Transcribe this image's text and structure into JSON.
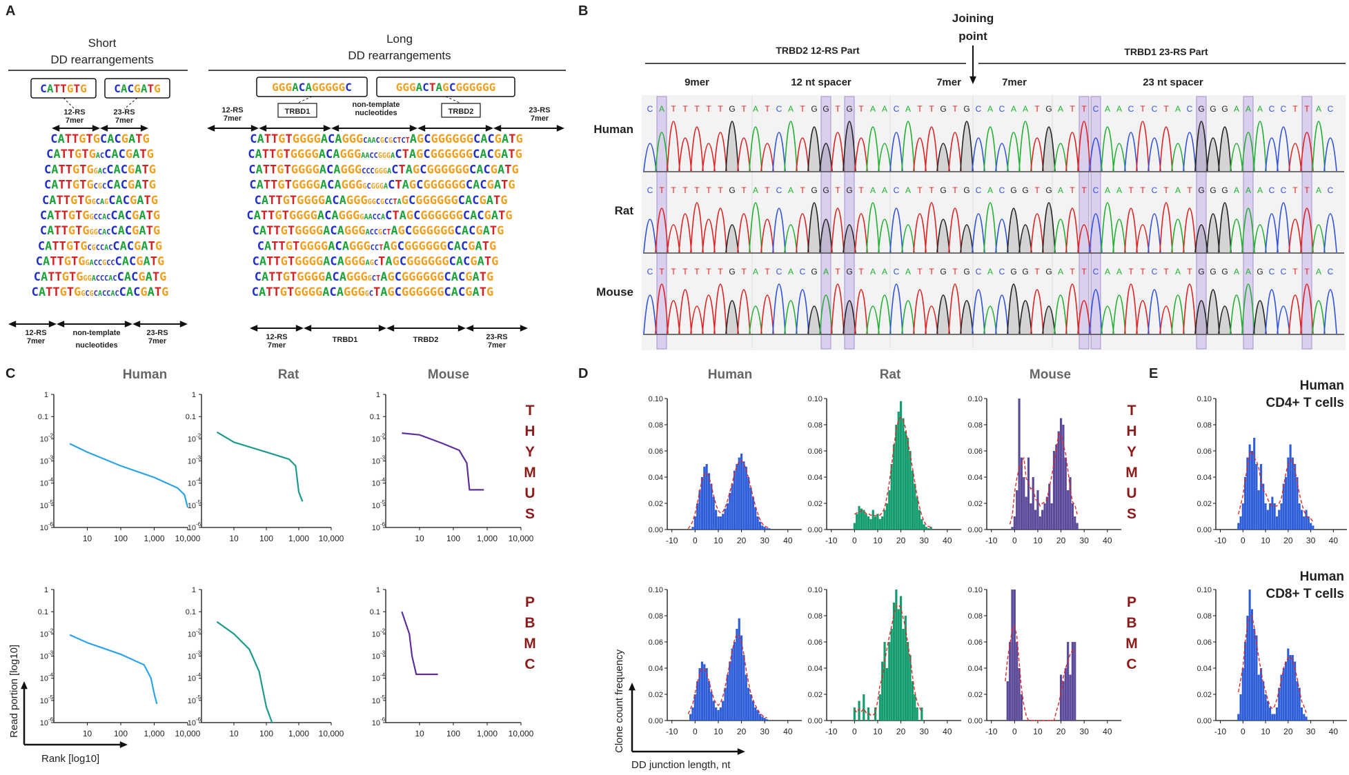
{
  "panels": {
    "A": "A",
    "B": "B",
    "C": "C",
    "D": "D",
    "E": "E"
  },
  "panelA": {
    "short_title": [
      "Short",
      "DD rearrangements"
    ],
    "long_title": [
      "Long",
      "DD rearrangements"
    ],
    "short_boxes": [
      "CATTGTG",
      "CACGATG"
    ],
    "long_boxes": [
      "GGGACAGGGGGC",
      "GGGACTAGCGGGGGG"
    ],
    "short_top_labels": [
      [
        "12-RS",
        "7mer"
      ],
      [
        "23-RS",
        "7mer"
      ]
    ],
    "long_top_labels": [
      [
        "12-RS",
        "7mer"
      ],
      "TRBD1",
      [
        "non-template",
        "nucleotides"
      ],
      "TRBD2",
      [
        "23-RS",
        "7mer"
      ]
    ],
    "short_bottom_labels": [
      [
        "12-RS",
        "7mer"
      ],
      [
        "non-template",
        "nucleotides"
      ],
      [
        "23-RS",
        "7mer"
      ]
    ],
    "long_bottom_labels": [
      [
        "12-RS",
        "7mer"
      ],
      "TRBD1",
      "TRBD2",
      [
        "23-RS",
        "7mer"
      ]
    ],
    "short_seqs": [
      [
        "CATTGTG",
        "",
        "CACGATG"
      ],
      [
        "CATTGTG",
        "AC",
        "CACGATG"
      ],
      [
        "CATTGTG",
        "GAC",
        "CACGATG"
      ],
      [
        "CATTGTG",
        "CGC",
        "CACGATG"
      ],
      [
        "CATTGTG",
        "GCAG",
        "CACGATG"
      ],
      [
        "CATTGTG",
        "GCCAC",
        "CACGATG"
      ],
      [
        "CATTGTG",
        "GGCAC",
        "CACGATG"
      ],
      [
        "CATTGTG",
        "CGCCAC",
        "CACGATG"
      ],
      [
        "CATTGTG",
        "GACCGCC",
        "CACGATG"
      ],
      [
        "CATTGTG",
        "GGACCCAC",
        "CACGATG"
      ],
      [
        "CATTGTG",
        "GCGCACCAC",
        "CACGATG"
      ]
    ],
    "long_seqs": [
      [
        "CATTGTGGGGACAGGG",
        "CAACGCGCTCT",
        "AGCGGGGGGCACGATG"
      ],
      [
        "CATTGTGGGGACAGGG",
        "AACCGGGA",
        "CTAGCGGGGGGCACGATG"
      ],
      [
        "CATTGTGGGGACAGGG",
        "CCCGGGA",
        "CTAGCGGGGGGCACGATG"
      ],
      [
        "CATTGTGGGGACAGGG",
        "GCGGGA",
        "CTAGCGGGGGGCACGATG"
      ],
      [
        "CATTGTGGGGACAGGG",
        "GGCGCCTA",
        "GCGGGGGGCACGATG"
      ],
      [
        "CATTGTGGGGACAGGG",
        "GAACCA",
        "CTAGCGGGGGGCACGATG"
      ],
      [
        "CATTGTGGGGACAGGG",
        "ACCGCT",
        "AGCGGGGGGCACGATG"
      ],
      [
        "CATTGTGGGGACAGGG",
        "CCT",
        "AGCGGGGGGCACGATG"
      ],
      [
        "CATTGTGGGGACAGGG",
        "AGC",
        "TAGCGGGGGGCACGATG"
      ],
      [
        "CATTGTGGGGACAGGG",
        "GCT",
        "AGCGGGGGGCACGATG"
      ],
      [
        "CATTGTGGGGACAGGG",
        "GC",
        "TAGCGGGGGGCACGATG"
      ]
    ]
  },
  "panelB": {
    "joining": [
      "Joining",
      "point"
    ],
    "left_header": "TRBD2 12-RS  Part",
    "right_header": "TRBD1 23-RS  Part",
    "segments": [
      "9mer",
      "12 nt spacer",
      "7mer",
      "7mer",
      "23 nt spacer"
    ],
    "rows": [
      {
        "label": "Human",
        "seq": "CATTTTTGTATCATGGTGTAACATTGTGCACAATGATTCAACTCTACGGGAAACCTTAC"
      },
      {
        "label": "Rat",
        "seq": "CTTTTTTGTATCATGGTGTAACATTGTGCACGGTGATTCAATTCTATGGGAAACCTTAC"
      },
      {
        "label": "Mouse",
        "seq": "CTTTTTTGTATCACGATGTAACATTGTGCACGGTGATTCAATTCTATGGGAAGCCTTAC"
      }
    ]
  },
  "panelC": {
    "species": [
      "Human",
      "Rat",
      "Mouse"
    ],
    "thymus_letters": [
      "T",
      "H",
      "Y",
      "M",
      "U",
      "S"
    ],
    "pbmc_letters": [
      "P",
      "B",
      "M",
      "C"
    ],
    "y_ticks": [
      "1",
      "0.1",
      "10-2",
      "10-3",
      "10-4",
      "10-5",
      "10-6"
    ],
    "x_ticks": [
      "10",
      "100",
      "1,000",
      "10,000"
    ],
    "ylabel": "Read portion [log10]",
    "xlabel": "Rank [log10]",
    "colors": {
      "Human": "#2aa3e8",
      "Rat": "#1a9a8c",
      "Mouse": "#5e2d9e"
    },
    "chart_data": [
      {
        "type": "line",
        "species": "Human",
        "tissue": "THYMUS",
        "x": [
          3,
          10,
          100,
          1000,
          5000,
          8000,
          10000
        ],
        "y": [
          0.006,
          0.0025,
          0.0006,
          0.00018,
          6e-05,
          3e-05,
          8e-06
        ]
      },
      {
        "type": "line",
        "species": "Rat",
        "tissue": "THYMUS",
        "x": [
          3,
          10,
          100,
          500,
          800,
          1000,
          1300
        ],
        "y": [
          0.02,
          0.007,
          0.0025,
          0.0012,
          0.0006,
          4e-05,
          1.5e-05
        ]
      },
      {
        "type": "line",
        "species": "Mouse",
        "tissue": "THYMUS",
        "x": [
          3,
          10,
          50,
          150,
          250,
          300,
          800
        ],
        "y": [
          0.018,
          0.015,
          0.006,
          0.003,
          0.0008,
          5e-05,
          5e-05
        ]
      },
      {
        "type": "line",
        "species": "Human",
        "tissue": "PBMC",
        "x": [
          3,
          10,
          100,
          500,
          800,
          1000,
          1200
        ],
        "y": [
          0.009,
          0.004,
          0.0012,
          0.0004,
          0.0001,
          2e-05,
          7e-06
        ]
      },
      {
        "type": "line",
        "species": "Rat",
        "tissue": "PBMC",
        "x": [
          3,
          10,
          30,
          60,
          100,
          150
        ],
        "y": [
          0.035,
          0.01,
          0.002,
          0.0002,
          5e-06,
          1e-06
        ]
      },
      {
        "type": "line",
        "species": "Mouse",
        "tissue": "PBMC",
        "x": [
          3,
          5,
          6,
          8,
          35
        ],
        "y": [
          0.1,
          0.01,
          0.001,
          0.00015,
          0.00015
        ]
      }
    ]
  },
  "panelD": {
    "species": [
      "Human",
      "Rat",
      "Mouse"
    ],
    "y_ticks": [
      "0.10",
      "0.08",
      "0.06",
      "0.04",
      "0.02",
      "0.00"
    ],
    "x_ticks": [
      "-10",
      "0",
      "10",
      "20",
      "30",
      "40"
    ],
    "ylabel": "Clone count frequency",
    "xlabel": "DD junction length, nt",
    "colors": {
      "Human": "#2f5fd8",
      "Rat": "#139c6e",
      "Mouse": "#5b4a9a",
      "fit": "#e02828"
    },
    "chart_data": [
      {
        "type": "bar",
        "species": "Human",
        "tissue": "THYMUS",
        "x_start": -3,
        "values": [
          0,
          0,
          0.002,
          0.01,
          0.02,
          0.03,
          0.04,
          0.048,
          0.05,
          0.043,
          0.035,
          0.025,
          0.015,
          0.01,
          0.01,
          0.012,
          0.016,
          0.02,
          0.028,
          0.035,
          0.045,
          0.05,
          0.055,
          0.058,
          0.052,
          0.048,
          0.04,
          0.032,
          0.025,
          0.017,
          0.01,
          0.006,
          0.003,
          0.002,
          0.001,
          0.001
        ]
      },
      {
        "type": "bar",
        "species": "Rat",
        "tissue": "THYMUS",
        "x_start": 0,
        "values": [
          0.005,
          0.012,
          0.018,
          0.016,
          0.015,
          0.012,
          0.01,
          0.008,
          0.015,
          0.01,
          0.012,
          0.008,
          0.01,
          0.015,
          0.02,
          0.03,
          0.05,
          0.065,
          0.08,
          0.09,
          0.098,
          0.085,
          0.075,
          0.07,
          0.06,
          0.045,
          0.035,
          0.025,
          0.015,
          0.008,
          0.004,
          0.002,
          0.001,
          0.002
        ]
      },
      {
        "type": "bar",
        "species": "Mouse",
        "tissue": "THYMUS",
        "x_start": -2,
        "values": [
          0,
          0.002,
          0.01,
          0.03,
          0.1,
          0.055,
          0.04,
          0.025,
          0.055,
          0.02,
          0.04,
          0.015,
          0.03,
          0.01,
          0.015,
          0.02,
          0.025,
          0.035,
          0.02,
          0.06,
          0.065,
          0.075,
          0.085,
          0.08,
          0.055,
          0.03,
          0.04,
          0.02,
          0.01,
          0.005
        ]
      },
      {
        "type": "bar",
        "species": "Human",
        "tissue": "PBMC",
        "x_start": -3,
        "values": [
          0,
          0.005,
          0.01,
          0.02,
          0.03,
          0.04,
          0.045,
          0.043,
          0.04,
          0.03,
          0.022,
          0.015,
          0.01,
          0.008,
          0.01,
          0.015,
          0.025,
          0.035,
          0.045,
          0.055,
          0.06,
          0.07,
          0.078,
          0.065,
          0.05,
          0.035,
          0.025,
          0.02,
          0.015,
          0.01,
          0.008,
          0.005,
          0.003,
          0.002,
          0.001
        ]
      },
      {
        "type": "bar",
        "species": "Rat",
        "tissue": "PBMC",
        "x_start": 0,
        "values": [
          0.01,
          0,
          0.015,
          0,
          0.02,
          0,
          0.01,
          0,
          0,
          0.01,
          0,
          0.02,
          0.045,
          0.06,
          0.04,
          0.06,
          0.07,
          0.09,
          0.1,
          0.085,
          0.095,
          0.07,
          0.08,
          0.06,
          0.05,
          0.03,
          0.02,
          0.01,
          0,
          0.01
        ]
      },
      {
        "type": "bar",
        "species": "Mouse",
        "tissue": "PBMC",
        "x_start": -4,
        "values": [
          0,
          0.03,
          0.06,
          0.1,
          0.1,
          0.06,
          0.04,
          0.02,
          0,
          0,
          0,
          0,
          0,
          0,
          0,
          0,
          0,
          0,
          0,
          0,
          0,
          0,
          0,
          0,
          0.035,
          0.03,
          0.04,
          0.06,
          0.035,
          0.06,
          0.06
        ]
      }
    ]
  },
  "panelE": {
    "title_top": [
      "Human",
      "CD4+ T cells"
    ],
    "title_bottom": [
      "Human",
      "CD8+ T cells"
    ],
    "y_ticks": [
      "0.10",
      "0.08",
      "0.06",
      "0.04",
      "0.02",
      "0.00"
    ],
    "x_ticks": [
      "-10",
      "0",
      "10",
      "20",
      "30",
      "40"
    ],
    "chart_data": [
      {
        "type": "bar",
        "cells": "CD4+",
        "x_start": -2,
        "values": [
          0.005,
          0.01,
          0.02,
          0.04,
          0.055,
          0.065,
          0.06,
          0.07,
          0.05,
          0.03,
          0.05,
          0.035,
          0.02,
          0.015,
          0.02,
          0.025,
          0.02,
          0.01,
          0.015,
          0.02,
          0.035,
          0.04,
          0.055,
          0.065,
          0.055,
          0.05,
          0.04,
          0.02,
          0.015,
          0.01,
          0.015,
          0.01,
          0.005,
          0.003
        ]
      },
      {
        "type": "bar",
        "cells": "CD8+",
        "x_start": -2,
        "values": [
          0.005,
          0.02,
          0.04,
          0.06,
          0.08,
          0.1,
          0.085,
          0.07,
          0.065,
          0.035,
          0.04,
          0.03,
          0.02,
          0.015,
          0.01,
          0.005,
          0.005,
          0.01,
          0.025,
          0.035,
          0.04,
          0.045,
          0.055,
          0.05,
          0.05,
          0.045,
          0.03,
          0.025,
          0.01,
          0.005,
          0.003
        ]
      }
    ]
  }
}
